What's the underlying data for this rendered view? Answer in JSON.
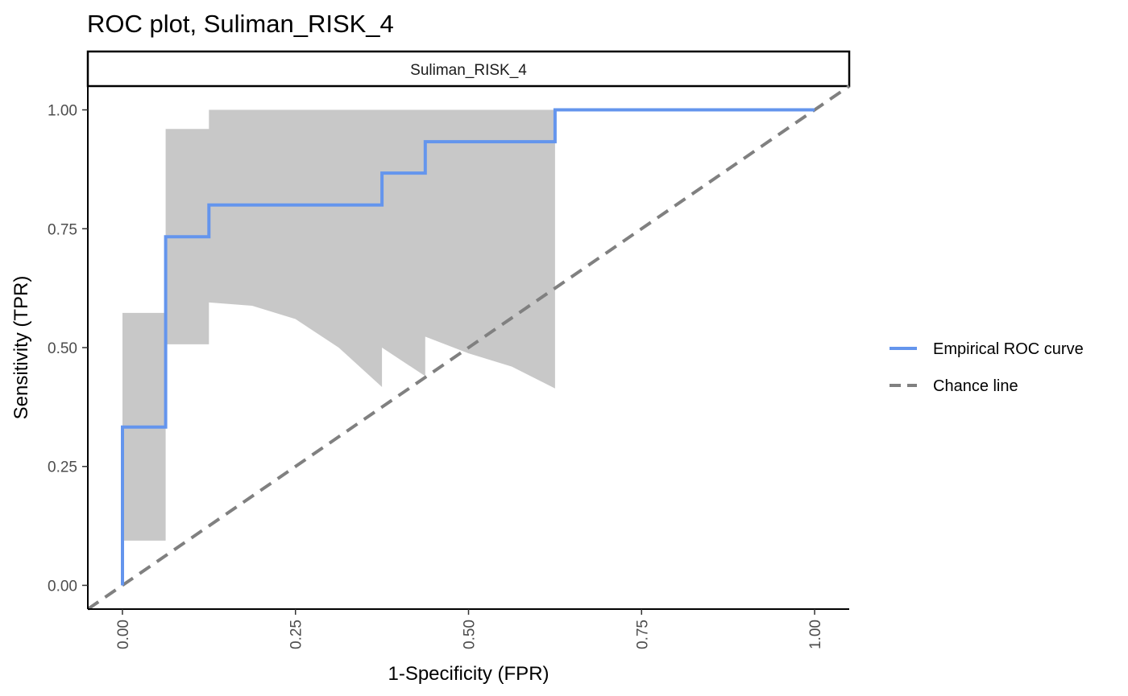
{
  "chart_data": {
    "type": "line",
    "title": "ROC plot, Suliman_RISK_4",
    "facet_label": "Suliman_RISK_4",
    "xlabel": "1-Specificity (FPR)",
    "ylabel": "Sensitivity (TPR)",
    "xlim": [
      -0.05,
      1.05
    ],
    "ylim": [
      -0.05,
      1.05
    ],
    "x_ticks": [
      0.0,
      0.25,
      0.5,
      0.75,
      1.0
    ],
    "x_tick_labels": [
      "0.00",
      "0.25",
      "0.50",
      "0.75",
      "1.00"
    ],
    "y_ticks": [
      0.0,
      0.25,
      0.5,
      0.75,
      1.0
    ],
    "y_tick_labels": [
      "0.00",
      "0.25",
      "0.50",
      "0.75",
      "1.00"
    ],
    "grid": false,
    "legend_position": "right",
    "series": [
      {
        "name": "Empirical ROC curve",
        "kind": "step",
        "color": "#6495ED",
        "x": [
          0.0,
          0.0,
          0.0625,
          0.0625,
          0.125,
          0.125,
          0.375,
          0.375,
          0.4375,
          0.4375,
          0.625,
          0.625,
          1.0
        ],
        "y": [
          0.0,
          0.333,
          0.333,
          0.733,
          0.733,
          0.8,
          0.8,
          0.867,
          0.867,
          0.933,
          0.933,
          1.0,
          1.0
        ]
      },
      {
        "name": "Chance line",
        "kind": "dashed",
        "color": "#808080",
        "x": [
          -0.05,
          1.05
        ],
        "y": [
          -0.05,
          1.05
        ]
      }
    ],
    "confidence_band": {
      "color": "#C8C8C8",
      "upper": {
        "x": [
          0.0,
          0.0625,
          0.0625,
          0.125,
          0.125,
          0.625
        ],
        "y": [
          0.573,
          0.573,
          0.96,
          0.96,
          1.0,
          1.0
        ]
      },
      "lower": {
        "x": [
          0.0,
          0.0625,
          0.0625,
          0.125,
          0.125,
          0.1875,
          0.25,
          0.3125,
          0.375,
          0.375,
          0.4375,
          0.4375,
          0.5,
          0.5625,
          0.625
        ],
        "y": [
          0.094,
          0.094,
          0.507,
          0.507,
          0.595,
          0.588,
          0.56,
          0.5,
          0.417,
          0.5,
          0.44,
          0.523,
          0.488,
          0.46,
          0.414
        ]
      }
    }
  },
  "legend": {
    "items": [
      {
        "label": "Empirical ROC curve",
        "color": "#6495ED",
        "style": "solid"
      },
      {
        "label": "Chance line",
        "color": "#808080",
        "style": "dashed"
      }
    ]
  }
}
